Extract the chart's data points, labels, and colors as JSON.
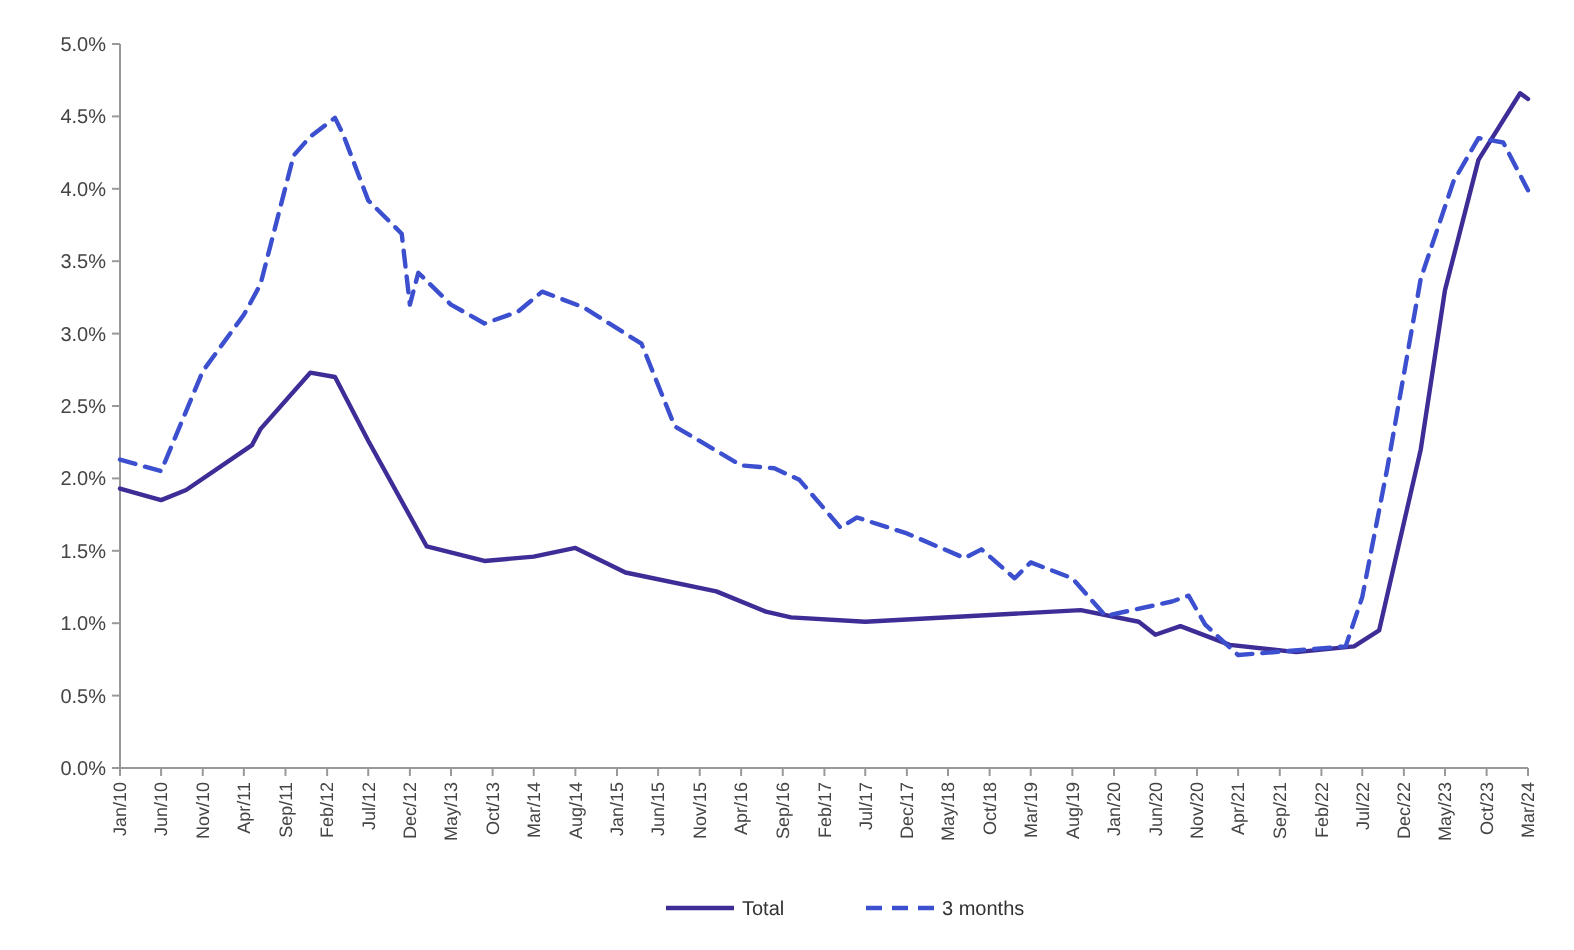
{
  "chart_data": {
    "type": "line",
    "legend": "bottom",
    "grid": false,
    "xlim": [
      "2010-01",
      "2024-03"
    ],
    "xticks": [
      {
        "value": "2010-01",
        "label": "Jan/10"
      },
      {
        "value": "2010-06",
        "label": "Jun/10"
      },
      {
        "value": "2010-11",
        "label": "Nov/10"
      },
      {
        "value": "2011-04",
        "label": "Apr/11"
      },
      {
        "value": "2011-09",
        "label": "Sep/11"
      },
      {
        "value": "2012-02",
        "label": "Feb/12"
      },
      {
        "value": "2012-07",
        "label": "Jul/12"
      },
      {
        "value": "2012-12",
        "label": "Dec/12"
      },
      {
        "value": "2013-05",
        "label": "May/13"
      },
      {
        "value": "2013-10",
        "label": "Oct/13"
      },
      {
        "value": "2014-03",
        "label": "Mar/14"
      },
      {
        "value": "2014-08",
        "label": "Aug/14"
      },
      {
        "value": "2015-01",
        "label": "Jan/15"
      },
      {
        "value": "2015-06",
        "label": "Jun/15"
      },
      {
        "value": "2015-11",
        "label": "Nov/15"
      },
      {
        "value": "2016-04",
        "label": "Apr/16"
      },
      {
        "value": "2016-09",
        "label": "Sep/16"
      },
      {
        "value": "2017-02",
        "label": "Feb/17"
      },
      {
        "value": "2017-07",
        "label": "Jul/17"
      },
      {
        "value": "2017-12",
        "label": "Dec/17"
      },
      {
        "value": "2018-05",
        "label": "May/18"
      },
      {
        "value": "2018-10",
        "label": "Oct/18"
      },
      {
        "value": "2019-03",
        "label": "Mar/19"
      },
      {
        "value": "2019-08",
        "label": "Aug/19"
      },
      {
        "value": "2020-01",
        "label": "Jan/20"
      },
      {
        "value": "2020-06",
        "label": "Jun/20"
      },
      {
        "value": "2020-11",
        "label": "Nov/20"
      },
      {
        "value": "2021-04",
        "label": "Apr/21"
      },
      {
        "value": "2021-09",
        "label": "Sep/21"
      },
      {
        "value": "2022-02",
        "label": "Feb/22"
      },
      {
        "value": "2022-07",
        "label": "Jul/22"
      },
      {
        "value": "2022-12",
        "label": "Dec/22"
      },
      {
        "value": "2023-05",
        "label": "May/23"
      },
      {
        "value": "2023-10",
        "label": "Oct/23"
      },
      {
        "value": "2024-03",
        "label": "Mar/24"
      }
    ],
    "ylim": [
      0,
      5
    ],
    "yticks": [
      {
        "value": 0,
        "label": "0.0%"
      },
      {
        "value": 0.5,
        "label": "0.5%"
      },
      {
        "value": 1,
        "label": "1.0%"
      },
      {
        "value": 1.5,
        "label": "1.5%"
      },
      {
        "value": 2,
        "label": "2.0%"
      },
      {
        "value": 2.5,
        "label": "2.5%"
      },
      {
        "value": 3,
        "label": "3.0%"
      },
      {
        "value": 3.5,
        "label": "3.5%"
      },
      {
        "value": 4,
        "label": "4.0%"
      },
      {
        "value": 4.5,
        "label": "4.5%"
      },
      {
        "value": 5,
        "label": "5.0%"
      }
    ],
    "series": [
      {
        "name": "Total",
        "color": "#3d2d96",
        "line_style": "solid",
        "x": [
          "2010-01",
          "2010-06",
          "2010-09",
          "2011-05",
          "2011-06",
          "2011-12",
          "2012-03",
          "2012-07",
          "2013-02",
          "2013-09",
          "2014-03",
          "2014-08",
          "2015-02",
          "2016-01",
          "2016-07",
          "2016-10",
          "2017-07",
          "2019-09",
          "2020-04",
          "2020-06",
          "2020-09",
          "2021-03",
          "2021-11",
          "2022-06",
          "2022-09",
          "2023-02",
          "2023-05",
          "2023-09",
          "2024-02",
          "2024-03"
        ],
        "values": [
          1.93,
          1.85,
          1.92,
          2.23,
          2.34,
          2.73,
          2.7,
          2.26,
          1.53,
          1.43,
          1.46,
          1.52,
          1.35,
          1.22,
          1.08,
          1.04,
          1.01,
          1.09,
          1.01,
          0.92,
          0.98,
          0.85,
          0.8,
          0.84,
          0.95,
          2.2,
          3.3,
          4.2,
          4.66,
          4.62
        ]
      },
      {
        "name": "3 months",
        "color": "#3b4fcf",
        "line_style": "dashed",
        "x": [
          "2010-01",
          "2010-06",
          "2010-11",
          "2011-04",
          "2011-06",
          "2011-10",
          "2011-12",
          "2012-03",
          "2012-04",
          "2012-07",
          "2012-11",
          "2012-12",
          "2013-01",
          "2013-05",
          "2013-09",
          "2014-01",
          "2014-04",
          "2014-09",
          "2015-04",
          "2015-08",
          "2016-04",
          "2016-08",
          "2016-11",
          "2017-04",
          "2017-06",
          "2017-12",
          "2018-07",
          "2018-09",
          "2019-01",
          "2019-03",
          "2019-08",
          "2019-12",
          "2020-08",
          "2020-10",
          "2020-12",
          "2021-04",
          "2022-05",
          "2022-07",
          "2022-10",
          "2023-02",
          "2023-06",
          "2023-09",
          "2023-12",
          "2024-03"
        ],
        "values": [
          2.13,
          2.05,
          2.74,
          3.13,
          3.34,
          4.23,
          4.36,
          4.49,
          4.37,
          3.92,
          3.69,
          3.2,
          3.42,
          3.2,
          3.07,
          3.15,
          3.29,
          3.18,
          2.93,
          2.36,
          2.09,
          2.07,
          1.99,
          1.66,
          1.73,
          1.62,
          1.45,
          1.51,
          1.31,
          1.42,
          1.31,
          1.05,
          1.15,
          1.19,
          0.99,
          0.78,
          0.84,
          1.18,
          2.07,
          3.38,
          4.05,
          4.35,
          4.32,
          3.99
        ]
      }
    ]
  }
}
